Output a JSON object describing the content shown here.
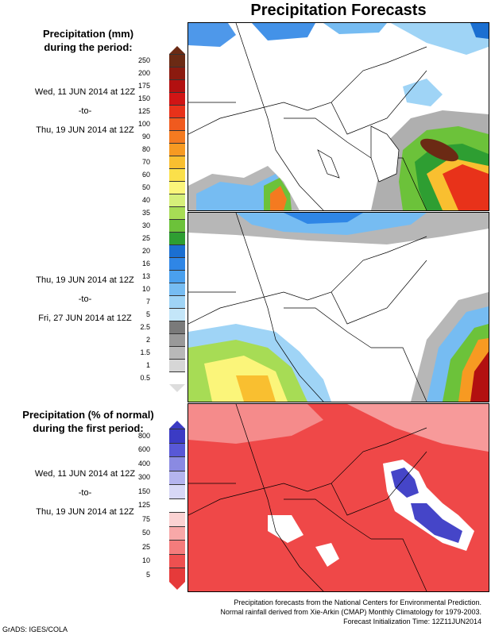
{
  "title": "Precipitation Forecasts",
  "section1": {
    "title_line1": "Precipitation (mm)",
    "title_line2": "during the period:",
    "period1": {
      "start": "Wed, 11 JUN 2014 at 12Z",
      "sep": "-to-",
      "end": "Thu, 19 JUN 2014 at 12Z"
    },
    "period2": {
      "start": "Thu, 19 JUN 2014 at 12Z",
      "sep": "-to-",
      "end": "Fri, 27 JUN 2014 at 12Z"
    }
  },
  "section2": {
    "title_line1": "Precipitation (% of normal)",
    "title_line2": "during the first period:",
    "period": {
      "start": "Wed, 11 JUN 2014 at 12Z",
      "sep": "-to-",
      "end": "Thu, 19 JUN 2014 at 12Z"
    }
  },
  "legend_mm": {
    "labels": [
      "250",
      "200",
      "175",
      "150",
      "125",
      "100",
      "90",
      "80",
      "70",
      "60",
      "50",
      "40",
      "35",
      "30",
      "25",
      "20",
      "16",
      "13",
      "10",
      "7",
      "5",
      "2.5",
      "2",
      "1.5",
      "1",
      "0.5"
    ],
    "colors": [
      "#6b2a14",
      "#8b1a0f",
      "#b21010",
      "#d01515",
      "#e8321a",
      "#f05a1e",
      "#f47a20",
      "#f79a22",
      "#f9bf30",
      "#fbe04a",
      "#fbf57a",
      "#d6ef7a",
      "#a7dc55",
      "#6cc23a",
      "#2e9e32",
      "#1b6fd1",
      "#2f86e6",
      "#4aa0ee",
      "#76bcf2",
      "#9fd4f6",
      "#c4e6f9",
      "#7a7a7a",
      "#999999",
      "#b8b8b8",
      "#d6d6d6",
      "#ffffff"
    ]
  },
  "legend_pct": {
    "labels": [
      "800",
      "600",
      "400",
      "300",
      "150",
      "125",
      "75",
      "50",
      "25",
      "10",
      "5"
    ],
    "colors": [
      "#3b3bc4",
      "#5858d6",
      "#8a8ae2",
      "#b4b4ee",
      "#d8d8f6",
      "#ffffff",
      "#fbd2d2",
      "#f8a8a8",
      "#f47c7c",
      "#ee5050",
      "#e63a3a"
    ]
  },
  "colors": {
    "land": "#ffffff",
    "border_line": "#000000",
    "ocean": "#ffffff",
    "deficit_red": "#ef4848",
    "surplus_blue": "#4545c8"
  },
  "credits": {
    "line1": "Precipitation forecasts from the National Centers for Environmental Prediction.",
    "line2": "Normal rainfall derived from Xie-Arkin (CMAP) Monthly Climatology for 1979-2003.",
    "line3": "Forecast Initialization Time: 12Z11JUN2014"
  },
  "footer": "GrADS: IGES/COLA"
}
